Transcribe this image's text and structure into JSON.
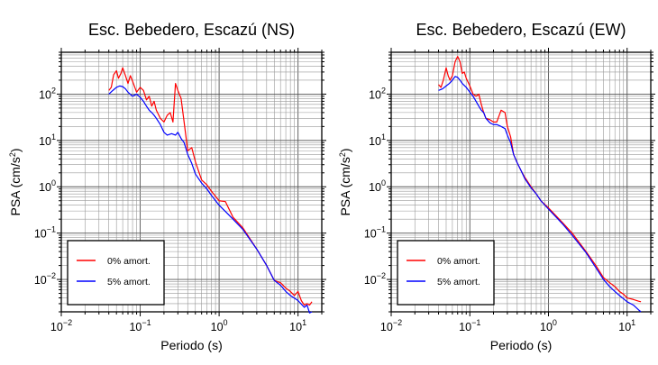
{
  "chart_data": [
    {
      "type": "line",
      "title": "Esc. Bebedero, Escazú (NS)",
      "xlabel": "Periodo (s)",
      "ylabel_main": "PSA (cm/s",
      "ylabel_sup": "2",
      "ylabel_tail": ")",
      "xscale": "log",
      "yscale": "log",
      "xlim": [
        0.01,
        20
      ],
      "ylim": [
        0.002,
        800
      ],
      "grid": true,
      "legend_position": "bottom-left",
      "x_ticks": [
        {
          "value": 0.01,
          "base": "10",
          "exp": "−2"
        },
        {
          "value": 0.1,
          "base": "10",
          "exp": "−1"
        },
        {
          "value": 1,
          "base": "10",
          "exp": "0"
        },
        {
          "value": 10,
          "base": "10",
          "exp": "1"
        }
      ],
      "y_ticks": [
        {
          "value": 0.01,
          "base": "10",
          "exp": "−2"
        },
        {
          "value": 0.1,
          "base": "10",
          "exp": "−1"
        },
        {
          "value": 1,
          "base": "10",
          "exp": "0"
        },
        {
          "value": 10,
          "base": "10",
          "exp": "1"
        },
        {
          "value": 100,
          "base": "10",
          "exp": "2"
        }
      ],
      "series": [
        {
          "name": "0% amort.",
          "color": "#ff0000",
          "x": [
            0.04,
            0.043,
            0.046,
            0.05,
            0.053,
            0.057,
            0.06,
            0.065,
            0.07,
            0.075,
            0.08,
            0.09,
            0.1,
            0.11,
            0.12,
            0.13,
            0.14,
            0.15,
            0.16,
            0.18,
            0.2,
            0.22,
            0.24,
            0.26,
            0.28,
            0.3,
            0.33,
            0.36,
            0.4,
            0.45,
            0.5,
            0.6,
            0.7,
            0.8,
            1.0,
            1.2,
            1.5,
            2.0,
            3.0,
            4.0,
            5.0,
            6.0,
            7.0,
            8.0,
            9.0,
            10.0,
            11.0,
            12.0,
            13.0,
            14.0,
            15.0
          ],
          "y": [
            120,
            140,
            260,
            320,
            220,
            280,
            370,
            250,
            170,
            250,
            190,
            110,
            140,
            120,
            75,
            90,
            55,
            70,
            45,
            30,
            25,
            35,
            40,
            25,
            170,
            120,
            80,
            25,
            6,
            7,
            3.5,
            1.4,
            1.1,
            0.8,
            0.5,
            0.48,
            0.22,
            0.13,
            0.045,
            0.02,
            0.0095,
            0.0085,
            0.0065,
            0.0055,
            0.0045,
            0.0055,
            0.0035,
            0.0028,
            0.003,
            0.0028,
            0.0033
          ]
        },
        {
          "name": "5% amort.",
          "color": "#0000ff",
          "x": [
            0.04,
            0.045,
            0.05,
            0.055,
            0.06,
            0.065,
            0.07,
            0.08,
            0.09,
            0.1,
            0.11,
            0.12,
            0.13,
            0.14,
            0.15,
            0.16,
            0.18,
            0.2,
            0.22,
            0.25,
            0.28,
            0.3,
            0.33,
            0.36,
            0.4,
            0.45,
            0.5,
            0.6,
            0.7,
            0.8,
            1.0,
            1.5,
            2.0,
            3.0,
            4.0,
            5.0,
            6.0,
            7.0,
            8.0,
            10.0,
            12.0,
            13.0,
            14.0,
            15.0
          ],
          "y": [
            100,
            120,
            140,
            150,
            145,
            130,
            110,
            90,
            100,
            85,
            70,
            55,
            45,
            40,
            35,
            30,
            22,
            15,
            13,
            14,
            13,
            15,
            11,
            9,
            5,
            3.2,
            1.9,
            1.2,
            0.9,
            0.65,
            0.4,
            0.2,
            0.12,
            0.045,
            0.02,
            0.0095,
            0.0075,
            0.0055,
            0.0045,
            0.0035,
            0.0025,
            0.0028,
            0.0019,
            0.002
          ]
        }
      ]
    },
    {
      "type": "line",
      "title": "Esc. Bebedero, Escazú (EW)",
      "xlabel": "Periodo (s)",
      "ylabel_main": "PSA (cm/s",
      "ylabel_sup": "2",
      "ylabel_tail": ")",
      "xscale": "log",
      "yscale": "log",
      "xlim": [
        0.01,
        20
      ],
      "ylim": [
        0.002,
        800
      ],
      "grid": true,
      "legend_position": "bottom-left",
      "x_ticks": [
        {
          "value": 0.01,
          "base": "10",
          "exp": "−2"
        },
        {
          "value": 0.1,
          "base": "10",
          "exp": "−1"
        },
        {
          "value": 1,
          "base": "10",
          "exp": "0"
        },
        {
          "value": 10,
          "base": "10",
          "exp": "1"
        }
      ],
      "y_ticks": [
        {
          "value": 0.01,
          "base": "10",
          "exp": "−2"
        },
        {
          "value": 0.1,
          "base": "10",
          "exp": "−1"
        },
        {
          "value": 1,
          "base": "10",
          "exp": "0"
        },
        {
          "value": 10,
          "base": "10",
          "exp": "1"
        },
        {
          "value": 100,
          "base": "10",
          "exp": "2"
        }
      ],
      "series": [
        {
          "name": "0% amort.",
          "color": "#ff0000",
          "x": [
            0.04,
            0.043,
            0.046,
            0.05,
            0.053,
            0.056,
            0.06,
            0.065,
            0.07,
            0.075,
            0.08,
            0.085,
            0.09,
            0.1,
            0.11,
            0.12,
            0.13,
            0.14,
            0.15,
            0.16,
            0.18,
            0.2,
            0.22,
            0.25,
            0.28,
            0.3,
            0.33,
            0.36,
            0.4,
            0.45,
            0.5,
            0.6,
            0.7,
            0.8,
            1.0,
            1.5,
            2.0,
            3.0,
            4.0,
            5.0,
            6.0,
            7.0,
            8.0,
            9.0,
            10.0,
            12.0,
            14.0,
            15.0
          ],
          "y": [
            160,
            140,
            200,
            370,
            250,
            200,
            250,
            500,
            650,
            500,
            280,
            300,
            220,
            150,
            100,
            90,
            100,
            60,
            40,
            30,
            28,
            25,
            25,
            45,
            40,
            20,
            12,
            5,
            3.3,
            2.2,
            1.6,
            1.0,
            0.7,
            0.5,
            0.35,
            0.17,
            0.1,
            0.04,
            0.02,
            0.011,
            0.0085,
            0.007,
            0.0055,
            0.0048,
            0.004,
            0.0037,
            0.0034,
            0.0033
          ]
        },
        {
          "name": "5% amort.",
          "color": "#0000ff",
          "x": [
            0.04,
            0.045,
            0.05,
            0.055,
            0.06,
            0.065,
            0.07,
            0.075,
            0.08,
            0.09,
            0.1,
            0.11,
            0.12,
            0.13,
            0.14,
            0.15,
            0.16,
            0.18,
            0.2,
            0.22,
            0.25,
            0.28,
            0.3,
            0.33,
            0.36,
            0.4,
            0.45,
            0.5,
            0.6,
            0.7,
            0.8,
            1.0,
            1.5,
            2.0,
            3.0,
            4.0,
            5.0,
            6.0,
            7.0,
            8.0,
            10.0,
            12.0,
            14.0,
            15.0
          ],
          "y": [
            120,
            130,
            150,
            170,
            200,
            240,
            230,
            200,
            170,
            140,
            110,
            90,
            70,
            55,
            45,
            40,
            30,
            24,
            22,
            22,
            20,
            18,
            13,
            9,
            5,
            3.3,
            2.2,
            1.5,
            0.95,
            0.7,
            0.5,
            0.33,
            0.16,
            0.09,
            0.038,
            0.018,
            0.01,
            0.007,
            0.0055,
            0.0045,
            0.0033,
            0.0028,
            0.0022,
            0.002
          ]
        }
      ]
    }
  ]
}
